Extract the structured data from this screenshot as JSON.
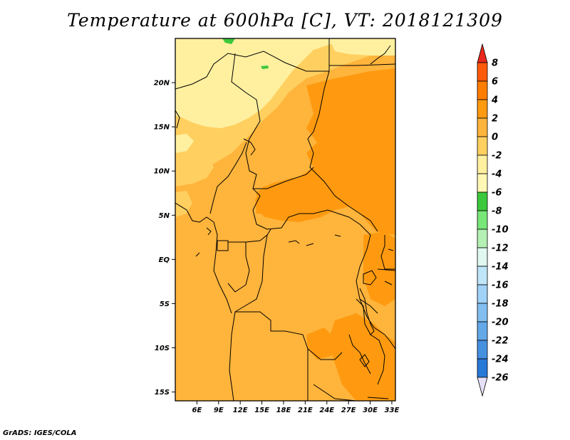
{
  "title": "Temperature at 600hPa [C], VT: 2018121309",
  "footer": "GrADS: IGES/COLA",
  "map": {
    "lon_range": [
      3,
      33.5
    ],
    "lat_range": [
      -16,
      25
    ],
    "lat_ticks": [
      {
        "value": 20,
        "label": "20N"
      },
      {
        "value": 15,
        "label": "15N"
      },
      {
        "value": 10,
        "label": "10N"
      },
      {
        "value": 5,
        "label": "5N"
      },
      {
        "value": 0,
        "label": "EQ"
      },
      {
        "value": -5,
        "label": "5S"
      },
      {
        "value": -10,
        "label": "10S"
      },
      {
        "value": -15,
        "label": "15S"
      }
    ],
    "lon_ticks": [
      {
        "value": 6,
        "label": "6E"
      },
      {
        "value": 9,
        "label": "9E"
      },
      {
        "value": 12,
        "label": "12E"
      },
      {
        "value": 15,
        "label": "15E"
      },
      {
        "value": 18,
        "label": "18E"
      },
      {
        "value": 21,
        "label": "21E"
      },
      {
        "value": 24,
        "label": "24E"
      },
      {
        "value": 27,
        "label": "27E"
      },
      {
        "value": 30,
        "label": "30E"
      },
      {
        "value": 33,
        "label": "33E"
      }
    ]
  },
  "colorbar": {
    "labels": [
      "8",
      "6",
      "4",
      "2",
      "0",
      "-2",
      "-4",
      "-6",
      "-8",
      "-10",
      "-12",
      "-14",
      "-16",
      "-18",
      "-20",
      "-22",
      "-24",
      "-26"
    ],
    "colors": [
      "#e8281c",
      "#ff5a0a",
      "#ff7d00",
      "#ff9a10",
      "#ffb43c",
      "#ffd060",
      "#fff0a0",
      "#fff8b4",
      "#3cc83c",
      "#78e678",
      "#b4f0b4",
      "#e0f8f0",
      "#bee6f8",
      "#a0d2f8",
      "#82bef0",
      "#64a8e8",
      "#4690e0",
      "#2878d8",
      "#1464c8",
      "#0a46a0",
      "#0a1e78"
    ]
  }
}
